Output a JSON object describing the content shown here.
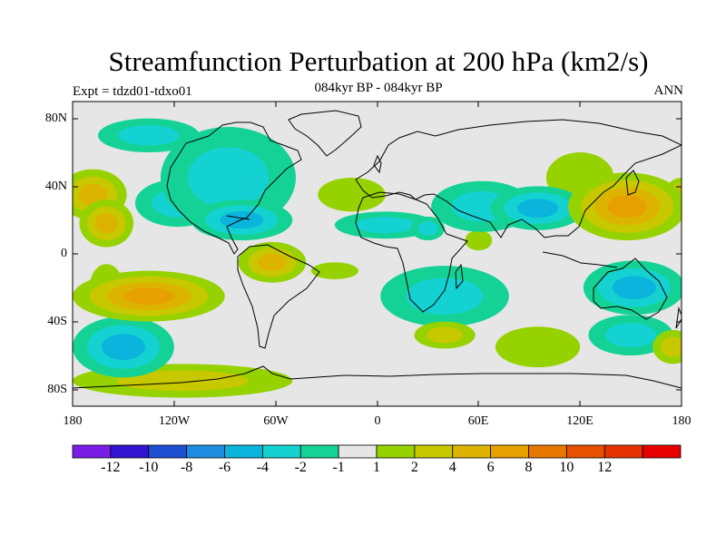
{
  "title": "Streamfunction Perturbation at 200 hPa (km2/s)",
  "left_string": "Expt = tdzd01-tdxo01",
  "center_string": "084kyr BP - 084kyr BP",
  "right_string": "ANN",
  "lat_labels": [
    "80N",
    "40N",
    "0",
    "40S",
    "80S"
  ],
  "lon_labels": [
    "180",
    "120W",
    "60W",
    "0",
    "60E",
    "120E",
    "180"
  ],
  "colorbar": {
    "colors": [
      "#7a1ee6",
      "#3214d2",
      "#1e50d2",
      "#1e8ce1",
      "#0ab4dc",
      "#14d2d2",
      "#14d296",
      "#e6e6e6",
      "#96d200",
      "#c8c800",
      "#dcb400",
      "#e6a000",
      "#e67800",
      "#e65000",
      "#e63200",
      "#e60000"
    ],
    "labels": [
      "-12",
      "-10",
      "-8",
      "-6",
      "-4",
      "-2",
      "-1",
      "1",
      "2",
      "4",
      "6",
      "8",
      "10",
      "12"
    ]
  },
  "chart_data": {
    "type": "heatmap",
    "title": "Streamfunction Perturbation at 200 hPa (km2/s)",
    "subtitle": "084kyr BP - 084kyr BP",
    "variable": "Streamfunction Perturbation",
    "level": "200 hPa",
    "units": "km2/s",
    "season": "ANN",
    "experiment": "tdzd01-tdxo01",
    "lon_range": [
      -180,
      180
    ],
    "lat_range": [
      -90,
      90
    ],
    "contour_levels": [
      -12,
      -10,
      -8,
      -6,
      -4,
      -2,
      -1,
      1,
      2,
      4,
      6,
      8,
      10,
      12
    ],
    "anomalies": [
      {
        "lon": -168,
        "lat": 35,
        "rlon": 20,
        "rlat": 15,
        "value": 4
      },
      {
        "lon": -160,
        "lat": 18,
        "rlon": 16,
        "rlat": 14,
        "value": 4
      },
      {
        "lon": -118,
        "lat": 30,
        "rlon": 25,
        "rlat": 14,
        "value": -2
      },
      {
        "lon": -88,
        "lat": 45,
        "rlon": 40,
        "rlat": 30,
        "value": -2
      },
      {
        "lon": -80,
        "lat": 20,
        "rlon": 30,
        "rlat": 12,
        "value": -4
      },
      {
        "lon": -135,
        "lat": 70,
        "rlon": 30,
        "rlat": 10,
        "value": -2
      },
      {
        "lon": -62,
        "lat": -5,
        "rlon": 20,
        "rlat": 12,
        "value": 4
      },
      {
        "lon": -135,
        "lat": -25,
        "rlon": 45,
        "rlat": 15,
        "value": 6
      },
      {
        "lon": -150,
        "lat": -55,
        "rlon": 30,
        "rlat": 18,
        "value": -4
      },
      {
        "lon": -115,
        "lat": -75,
        "rlon": 65,
        "rlat": 10,
        "value": 2
      },
      {
        "lon": -160,
        "lat": -20,
        "rlon": 10,
        "rlat": 14,
        "value": 1
      },
      {
        "lon": -25,
        "lat": -10,
        "rlon": 14,
        "rlat": 5,
        "value": 1
      },
      {
        "lon": -15,
        "lat": 35,
        "rlon": 20,
        "rlat": 10,
        "value": 1
      },
      {
        "lon": 5,
        "lat": 17,
        "rlon": 30,
        "rlat": 8,
        "value": -2
      },
      {
        "lon": 30,
        "lat": 15,
        "rlon": 10,
        "rlat": 7,
        "value": -2
      },
      {
        "lon": 62,
        "lat": 28,
        "rlon": 30,
        "rlat": 15,
        "value": -2
      },
      {
        "lon": 95,
        "lat": 27,
        "rlon": 28,
        "rlat": 13,
        "value": -4
      },
      {
        "lon": 60,
        "lat": 8,
        "rlon": 8,
        "rlat": 6,
        "value": 1
      },
      {
        "lon": 40,
        "lat": -25,
        "rlon": 38,
        "rlat": 18,
        "value": -2
      },
      {
        "lon": 40,
        "lat": -48,
        "rlon": 18,
        "rlat": 8,
        "value": 2
      },
      {
        "lon": 95,
        "lat": -55,
        "rlon": 25,
        "rlat": 12,
        "value": 1
      },
      {
        "lon": 148,
        "lat": 28,
        "rlon": 35,
        "rlat": 20,
        "value": 6
      },
      {
        "lon": 180,
        "lat": 35,
        "rlon": 10,
        "rlat": 10,
        "value": 4
      },
      {
        "lon": 152,
        "lat": -20,
        "rlon": 30,
        "rlat": 16,
        "value": -4
      },
      {
        "lon": 150,
        "lat": -48,
        "rlon": 25,
        "rlat": 12,
        "value": -2
      },
      {
        "lon": 120,
        "lat": 45,
        "rlon": 20,
        "rlat": 15,
        "value": 1
      },
      {
        "lon": 175,
        "lat": -55,
        "rlon": 12,
        "rlat": 10,
        "value": 2
      }
    ]
  }
}
